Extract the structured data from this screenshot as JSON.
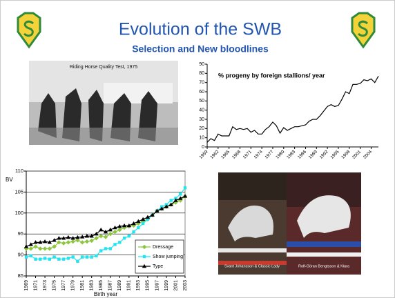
{
  "slide": {
    "title": "Evolution of the SWB",
    "subtitle": "Selection and New bloodlines",
    "photo_caption": "Riding Horse Quality Test, 1975",
    "captions": [
      "Svant Johansson & Classic Lady",
      "Rolf-Göran Bengtsson & Klara"
    ]
  },
  "chart_data": [
    {
      "type": "line",
      "title": "% progeny by foreign stallions/ year",
      "color": "#000000",
      "x": [
        1959,
        1960,
        1961,
        1962,
        1963,
        1964,
        1965,
        1966,
        1967,
        1968,
        1969,
        1970,
        1971,
        1972,
        1973,
        1974,
        1975,
        1976,
        1977,
        1978,
        1979,
        1980,
        1981,
        1982,
        1983,
        1984,
        1985,
        1986,
        1987,
        1988,
        1989,
        1990,
        1991,
        1992,
        1993,
        1994,
        1995,
        1996,
        1997,
        1998,
        1999,
        2000,
        2001,
        2002,
        2003,
        2004,
        2005,
        2006
      ],
      "values": [
        5,
        9,
        7,
        14,
        12,
        12,
        12,
        22,
        19,
        20,
        19,
        20,
        16,
        18,
        14,
        14,
        19,
        22,
        27,
        23,
        15,
        21,
        18,
        20,
        22,
        22,
        23,
        24,
        28,
        30,
        30,
        34,
        39,
        44,
        46,
        44,
        45,
        52,
        60,
        58,
        68,
        68,
        69,
        73,
        72,
        74,
        70,
        77
      ],
      "xlim": [
        1959,
        2006
      ],
      "xticks": [
        1959,
        1962,
        1965,
        1968,
        1971,
        1974,
        1977,
        1980,
        1983,
        1986,
        1989,
        1992,
        1995,
        1998,
        2001,
        2004
      ],
      "ylim": [
        0,
        90
      ],
      "yticks": [
        0,
        10,
        20,
        30,
        40,
        50,
        60,
        70,
        80,
        90
      ],
      "grid": false
    },
    {
      "type": "line",
      "y_label": "BV",
      "x_label": "Birth year",
      "x": [
        1969,
        1970,
        1971,
        1972,
        1973,
        1974,
        1975,
        1976,
        1977,
        1978,
        1979,
        1980,
        1981,
        1982,
        1983,
        1984,
        1985,
        1986,
        1987,
        1988,
        1989,
        1990,
        1991,
        1992,
        1993,
        1994,
        1995,
        1996,
        1997,
        1998,
        1999,
        2000,
        2001,
        2002,
        2003
      ],
      "xlim": [
        1969,
        2003
      ],
      "xticks": [
        1969,
        1971,
        1973,
        1975,
        1977,
        1979,
        1981,
        1983,
        1985,
        1987,
        1989,
        1991,
        1993,
        1995,
        1997,
        1999,
        2001,
        2003
      ],
      "ylim": [
        85,
        110
      ],
      "yticks": [
        85,
        90,
        95,
        100,
        105,
        110
      ],
      "grid": true,
      "legend": "lower right",
      "series": [
        {
          "name": "Dressage",
          "color": "#8cc63e",
          "marker": "diamond",
          "values": [
            91.5,
            91.5,
            92,
            91.5,
            91.5,
            91.5,
            92,
            93,
            92.8,
            93,
            93.2,
            93.5,
            93,
            93.2,
            93.4,
            94,
            94.5,
            94.3,
            95,
            95.5,
            96,
            96.5,
            96.8,
            97,
            97.5,
            98,
            98.5,
            99.5,
            100.5,
            101,
            101.5,
            102,
            102.5,
            103,
            104
          ]
        },
        {
          "name": "Show jumping",
          "color": "#22e3f0",
          "marker": "square",
          "values": [
            89.5,
            89.8,
            89,
            89,
            89.2,
            89,
            89.5,
            89,
            89,
            89.2,
            89.5,
            88.5,
            89.5,
            89.5,
            89.5,
            89.8,
            91,
            91.5,
            91.5,
            92.5,
            93,
            94,
            94.5,
            95.5,
            96.5,
            97.5,
            98.5,
            99.5,
            100.5,
            101.5,
            102,
            103,
            103.5,
            104.5,
            106
          ]
        },
        {
          "name": "Type",
          "color": "#000000",
          "marker": "triangle",
          "values": [
            92,
            92.5,
            93,
            93,
            93.2,
            93,
            93.5,
            94,
            94,
            94.2,
            94,
            94.2,
            94.3,
            94.5,
            94.5,
            95,
            96,
            95.5,
            96,
            96.5,
            96.8,
            97,
            97,
            97.5,
            98,
            98.5,
            99,
            99.5,
            100.5,
            101,
            101.5,
            102,
            103,
            103.5,
            104
          ]
        }
      ]
    }
  ]
}
